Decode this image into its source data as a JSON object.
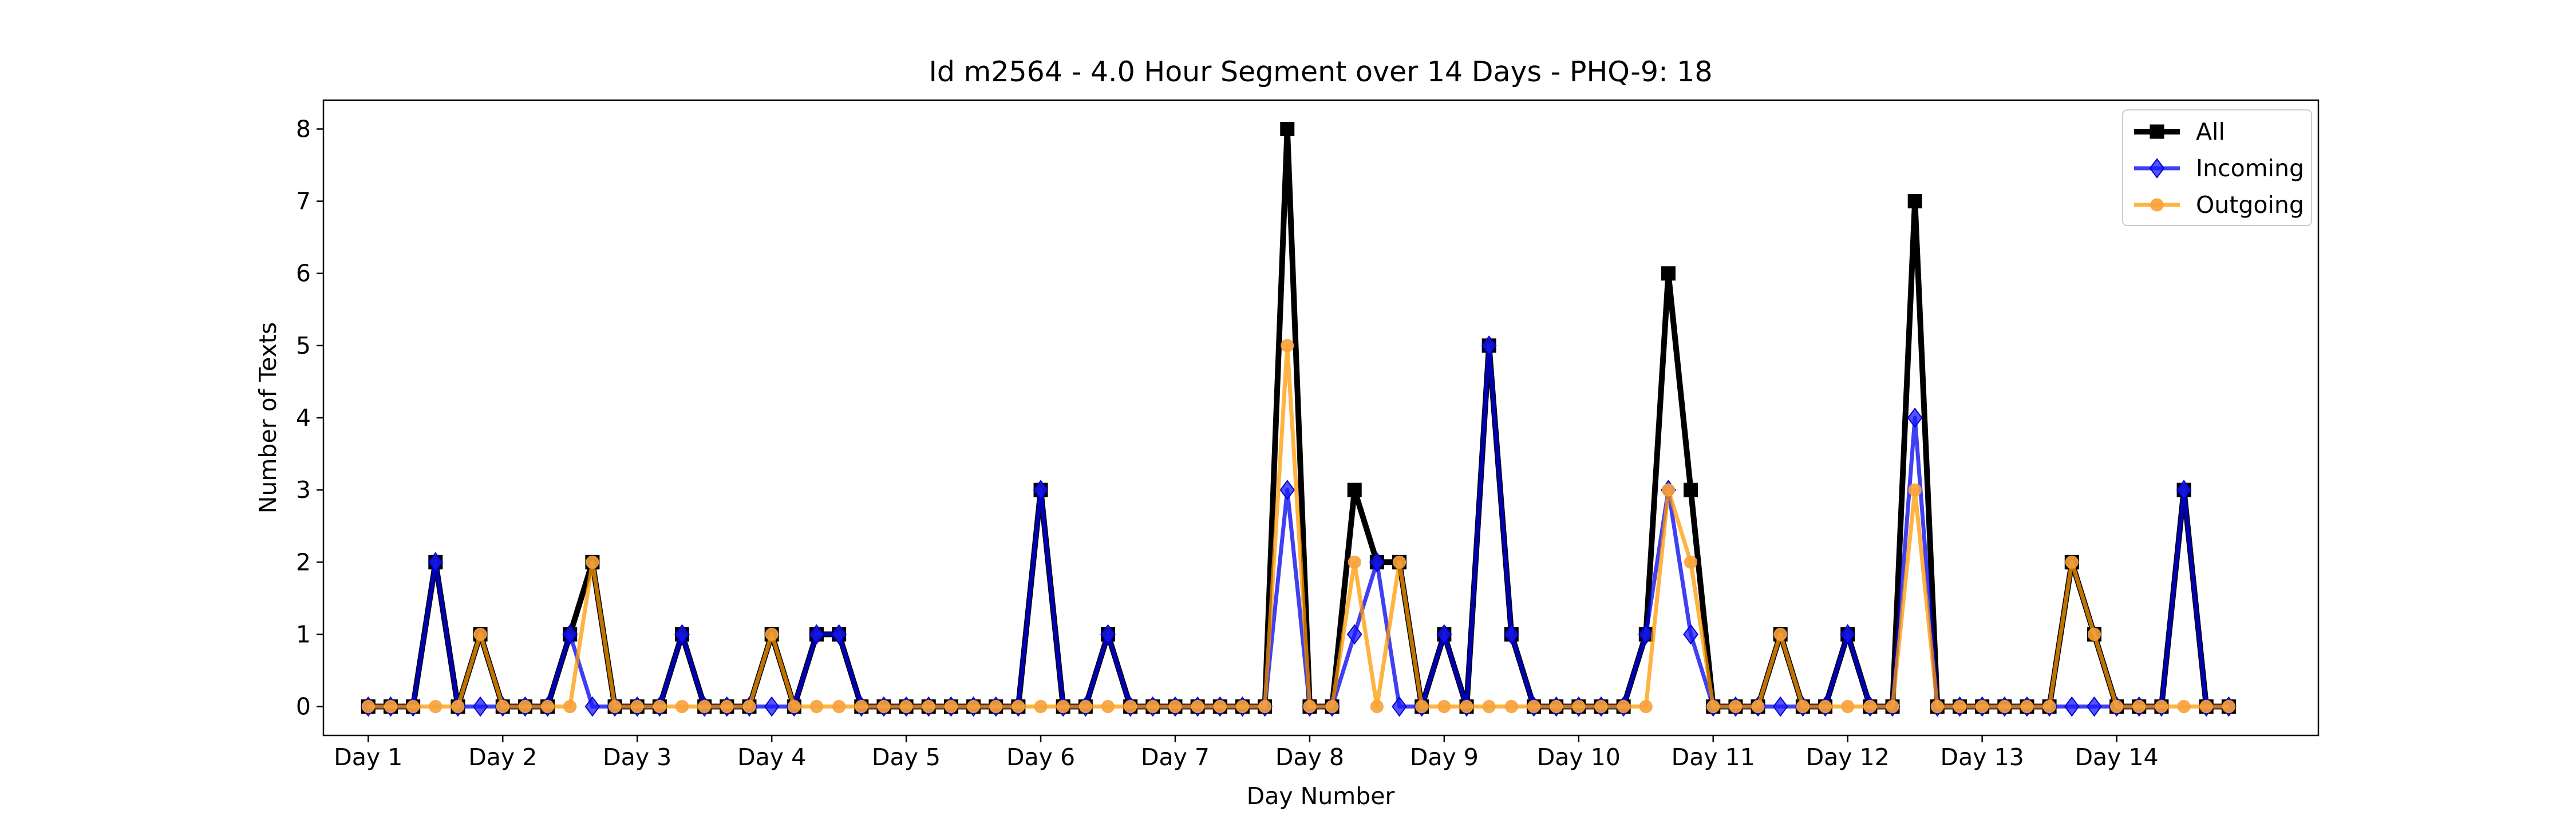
{
  "chart_data": {
    "type": "line",
    "title": "Id m2564 - 4.0 Hour Segment over 14 Days - PHQ-9: 18",
    "xlabel": "Day Number",
    "ylabel": "Number of Texts",
    "ylim": [
      -0.4,
      8.4
    ],
    "xlim": [
      -2,
      87
    ],
    "yticks": [
      0,
      1,
      2,
      3,
      4,
      5,
      6,
      7,
      8
    ],
    "xtick_positions": [
      0,
      6,
      12,
      18,
      24,
      30,
      36,
      42,
      48,
      54,
      60,
      66,
      72,
      78
    ],
    "xtick_labels": [
      "Day 1",
      "Day 2",
      "Day 3",
      "Day 4",
      "Day 5",
      "Day 6",
      "Day 7",
      "Day 8",
      "Day 9",
      "Day 10",
      "Day 11",
      "Day 12",
      "Day 13",
      "Day 14"
    ],
    "legend_position": "top-right",
    "grid": false,
    "series": [
      {
        "name": "All",
        "color": "#000000",
        "marker": "square",
        "values": [
          0,
          0,
          0,
          2,
          0,
          1,
          0,
          0,
          0,
          1,
          2,
          0,
          0,
          0,
          1,
          0,
          0,
          0,
          1,
          0,
          1,
          1,
          0,
          0,
          0,
          0,
          0,
          0,
          0,
          0,
          3,
          0,
          0,
          1,
          0,
          0,
          0,
          0,
          0,
          0,
          0,
          8,
          0,
          0,
          3,
          2,
          2,
          0,
          1,
          0,
          5,
          1,
          0,
          0,
          0,
          0,
          0,
          1,
          6,
          3,
          0,
          0,
          0,
          1,
          0,
          0,
          1,
          0,
          0,
          7,
          0,
          0,
          0,
          0,
          0,
          0,
          2,
          1,
          0,
          0,
          0,
          3,
          0,
          0
        ]
      },
      {
        "name": "Incoming",
        "color": "#0000ee",
        "marker": "diamond",
        "values": [
          0,
          0,
          0,
          2,
          0,
          0,
          0,
          0,
          0,
          1,
          0,
          0,
          0,
          0,
          1,
          0,
          0,
          0,
          0,
          0,
          1,
          1,
          0,
          0,
          0,
          0,
          0,
          0,
          0,
          0,
          3,
          0,
          0,
          1,
          0,
          0,
          0,
          0,
          0,
          0,
          0,
          3,
          0,
          0,
          1,
          2,
          0,
          0,
          1,
          0,
          5,
          1,
          0,
          0,
          0,
          0,
          0,
          1,
          3,
          1,
          0,
          0,
          0,
          0,
          0,
          0,
          1,
          0,
          0,
          4,
          0,
          0,
          0,
          0,
          0,
          0,
          0,
          0,
          0,
          0,
          0,
          3,
          0,
          0
        ]
      },
      {
        "name": "Outgoing",
        "color": "#ff9900",
        "marker": "circle",
        "values": [
          0,
          0,
          0,
          0,
          0,
          1,
          0,
          0,
          0,
          0,
          2,
          0,
          0,
          0,
          0,
          0,
          0,
          0,
          1,
          0,
          0,
          0,
          0,
          0,
          0,
          0,
          0,
          0,
          0,
          0,
          0,
          0,
          0,
          0,
          0,
          0,
          0,
          0,
          0,
          0,
          0,
          5,
          0,
          0,
          2,
          0,
          2,
          0,
          0,
          0,
          0,
          0,
          0,
          0,
          0,
          0,
          0,
          0,
          3,
          2,
          0,
          0,
          0,
          1,
          0,
          0,
          0,
          0,
          0,
          3,
          0,
          0,
          0,
          0,
          0,
          0,
          2,
          1,
          0,
          0,
          0,
          0,
          0,
          0
        ]
      }
    ]
  }
}
